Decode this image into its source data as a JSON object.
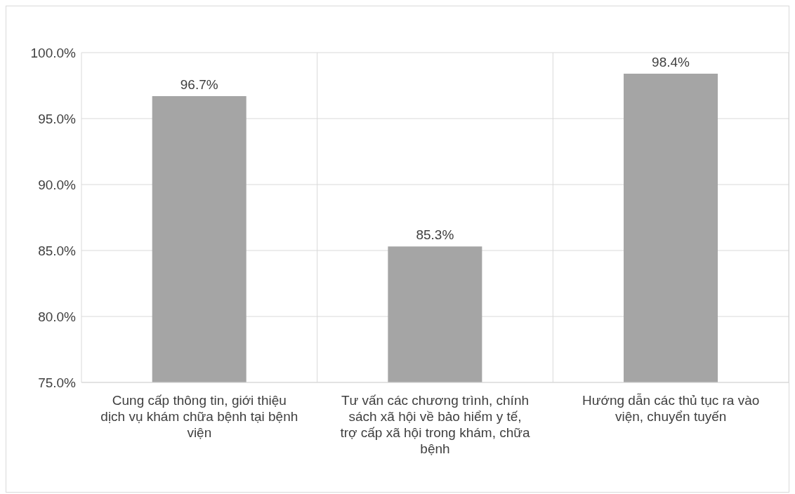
{
  "chart_data": {
    "type": "bar",
    "categories": [
      "Cung cấp thông tin, giới thiệu dịch vụ khám chữa bệnh tại bệnh viện",
      "Tư vấn các chương trình, chính sách xã hội về bảo hiểm y tế, trợ cấp xã hội trong khám, chữa bệnh",
      "Hướng dẫn các thủ tục ra vào viện, chuyển tuyến"
    ],
    "values": [
      96.7,
      85.3,
      98.4
    ],
    "value_labels": [
      "96.7%",
      "85.3%",
      "98.4%"
    ],
    "color": "#a5a5a5",
    "ylim": [
      75,
      100
    ],
    "yticks": [
      {
        "value": 75,
        "label": "75.0%"
      },
      {
        "value": 80,
        "label": "80.0%"
      },
      {
        "value": 85,
        "label": "85.0%"
      },
      {
        "value": 90,
        "label": "90.0%"
      },
      {
        "value": 95,
        "label": "95.0%"
      },
      {
        "value": 100,
        "label": "100.0%"
      }
    ],
    "grid": true
  }
}
